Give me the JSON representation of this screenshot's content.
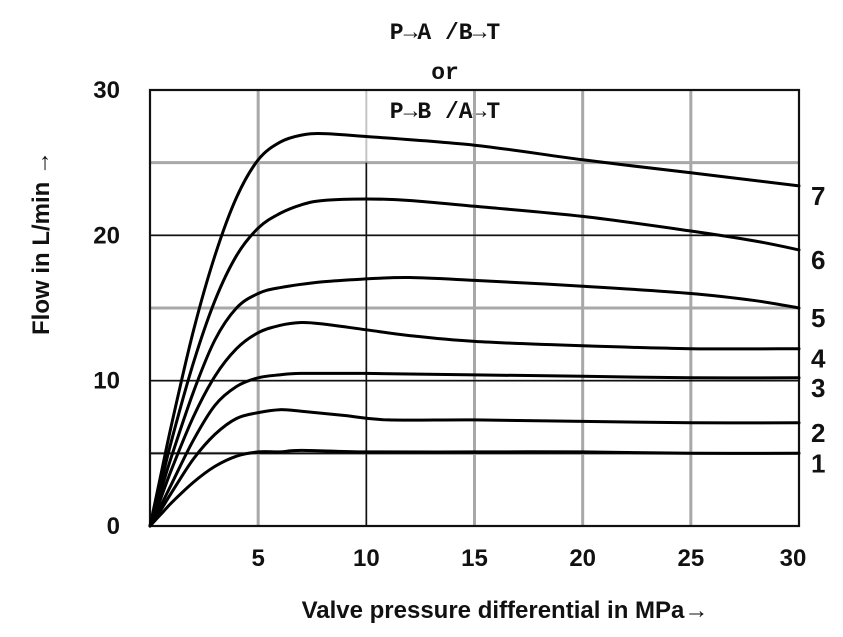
{
  "chart_data": {
    "type": "line",
    "title_lines": [
      "P→A /B→T",
      "or",
      "P→B /A→T"
    ],
    "xlabel": "Valve pressure differential in MPa→",
    "ylabel": "Flow in L/min →",
    "xlim": [
      0,
      30
    ],
    "ylim": [
      0,
      30
    ],
    "x_ticks": [
      5,
      10,
      15,
      20,
      25,
      30
    ],
    "y_ticks": [
      0,
      10,
      20,
      30
    ],
    "x_tick_labels": [
      "5",
      "10",
      "15",
      "20",
      "25",
      "30"
    ],
    "y_tick_labels": [
      "0",
      "10",
      "20",
      "30"
    ],
    "grid": true,
    "series": [
      {
        "name": "1",
        "points": [
          [
            0,
            0
          ],
          [
            0.5,
            0.8
          ],
          [
            1,
            1.6
          ],
          [
            2,
            3.0
          ],
          [
            3,
            4.1
          ],
          [
            4,
            4.8
          ],
          [
            5,
            5.1
          ],
          [
            6,
            5.1
          ],
          [
            7,
            5.2
          ],
          [
            10,
            5.1
          ],
          [
            15,
            5.1
          ],
          [
            20,
            5.1
          ],
          [
            25,
            5.0
          ],
          [
            30,
            5.0
          ]
        ]
      },
      {
        "name": "2",
        "points": [
          [
            0,
            0
          ],
          [
            0.5,
            1.1
          ],
          [
            1,
            2.3
          ],
          [
            2,
            4.6
          ],
          [
            3,
            6.3
          ],
          [
            4,
            7.4
          ],
          [
            5,
            7.8
          ],
          [
            6,
            8.0
          ],
          [
            7,
            7.9
          ],
          [
            9,
            7.6
          ],
          [
            11,
            7.3
          ],
          [
            15,
            7.3
          ],
          [
            20,
            7.2
          ],
          [
            25,
            7.1
          ],
          [
            30,
            7.1
          ]
        ]
      },
      {
        "name": "3",
        "points": [
          [
            0,
            0
          ],
          [
            0.5,
            1.4
          ],
          [
            1,
            2.9
          ],
          [
            2,
            5.9
          ],
          [
            3,
            8.3
          ],
          [
            4,
            9.6
          ],
          [
            5,
            10.2
          ],
          [
            6,
            10.4
          ],
          [
            7,
            10.5
          ],
          [
            10,
            10.5
          ],
          [
            15,
            10.4
          ],
          [
            20,
            10.3
          ],
          [
            25,
            10.2
          ],
          [
            30,
            10.2
          ]
        ]
      },
      {
        "name": "4",
        "points": [
          [
            0,
            0
          ],
          [
            0.5,
            1.9
          ],
          [
            1,
            3.9
          ],
          [
            2,
            7.5
          ],
          [
            3,
            10.3
          ],
          [
            4,
            12.2
          ],
          [
            5,
            13.3
          ],
          [
            6,
            13.8
          ],
          [
            7,
            14.0
          ],
          [
            8,
            13.9
          ],
          [
            10,
            13.5
          ],
          [
            12,
            13.1
          ],
          [
            15,
            12.7
          ],
          [
            20,
            12.4
          ],
          [
            25,
            12.2
          ],
          [
            30,
            12.2
          ]
        ]
      },
      {
        "name": "5",
        "points": [
          [
            0,
            0
          ],
          [
            0.5,
            2.4
          ],
          [
            1,
            4.8
          ],
          [
            2,
            9.2
          ],
          [
            3,
            12.8
          ],
          [
            4,
            15.0
          ],
          [
            5,
            16.0
          ],
          [
            6,
            16.4
          ],
          [
            8,
            16.8
          ],
          [
            10,
            17.0
          ],
          [
            12,
            17.1
          ],
          [
            15,
            16.9
          ],
          [
            20,
            16.5
          ],
          [
            25,
            16.0
          ],
          [
            28,
            15.5
          ],
          [
            30,
            15.0
          ]
        ]
      },
      {
        "name": "6",
        "points": [
          [
            0,
            0
          ],
          [
            0.5,
            2.9
          ],
          [
            1,
            5.9
          ],
          [
            2,
            11.2
          ],
          [
            3,
            15.5
          ],
          [
            4,
            18.6
          ],
          [
            5,
            20.5
          ],
          [
            6,
            21.5
          ],
          [
            7,
            22.1
          ],
          [
            8,
            22.4
          ],
          [
            10,
            22.5
          ],
          [
            12,
            22.4
          ],
          [
            15,
            22.0
          ],
          [
            20,
            21.3
          ],
          [
            25,
            20.3
          ],
          [
            28,
            19.6
          ],
          [
            30,
            19.0
          ]
        ]
      },
      {
        "name": "7",
        "points": [
          [
            0,
            0
          ],
          [
            0.5,
            3.5
          ],
          [
            1,
            7.0
          ],
          [
            2,
            13.4
          ],
          [
            3,
            18.6
          ],
          [
            4,
            22.6
          ],
          [
            5,
            25.2
          ],
          [
            6,
            26.4
          ],
          [
            7,
            26.9
          ],
          [
            8,
            27.0
          ],
          [
            10,
            26.8
          ],
          [
            15,
            26.2
          ],
          [
            20,
            25.2
          ],
          [
            25,
            24.3
          ],
          [
            30,
            23.4
          ]
        ]
      }
    ]
  }
}
